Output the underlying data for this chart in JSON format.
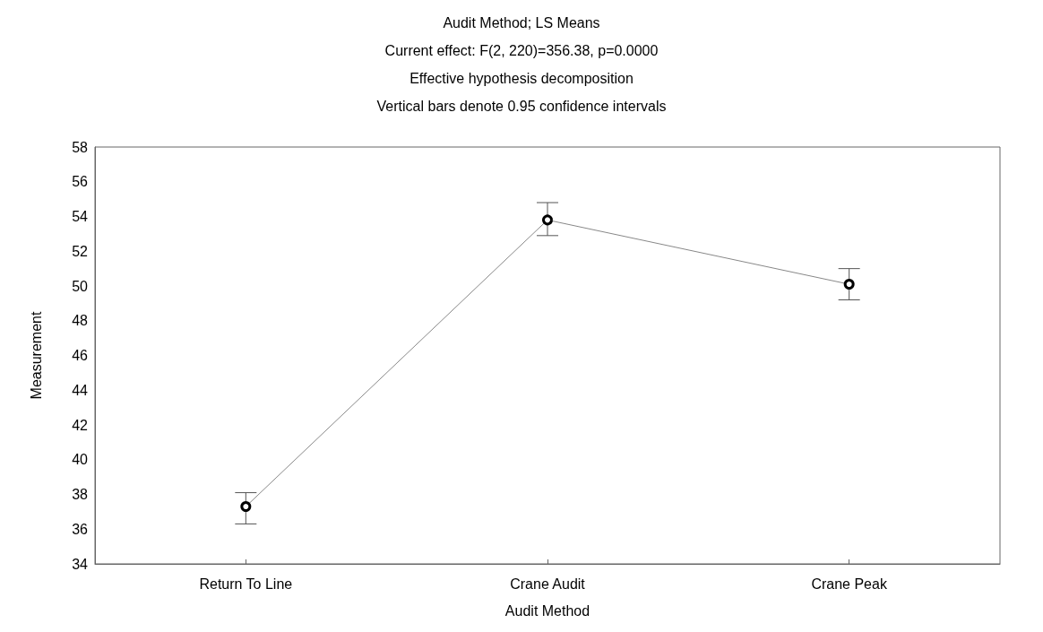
{
  "chart_data": {
    "type": "line",
    "title": "Audit Method; LS Means",
    "subtitle": "Current effect: F(2, 220)=356.38, p=0.0000\nEffective hypothesis decomposition\nVertical bars denote 0.95 confidence intervals",
    "xlabel": "Audit Method",
    "ylabel": "Measurement",
    "categories": [
      "Return To Line",
      "Crane Audit",
      "Crane Peak"
    ],
    "series": [
      {
        "color": "#000000",
        "values": [
          37.3,
          53.8,
          50.1
        ],
        "errors": [
          [
            36.3,
            38.1
          ],
          [
            52.9,
            54.8
          ],
          [
            49.2,
            51.0
          ]
        ]
      }
    ],
    "ylim": [
      34,
      58
    ],
    "yticks": [
      34,
      36,
      38,
      40,
      42,
      44,
      46,
      48,
      50,
      52,
      54,
      56,
      58
    ],
    "grid": false,
    "marker": "circle",
    "line_style": "solid"
  }
}
